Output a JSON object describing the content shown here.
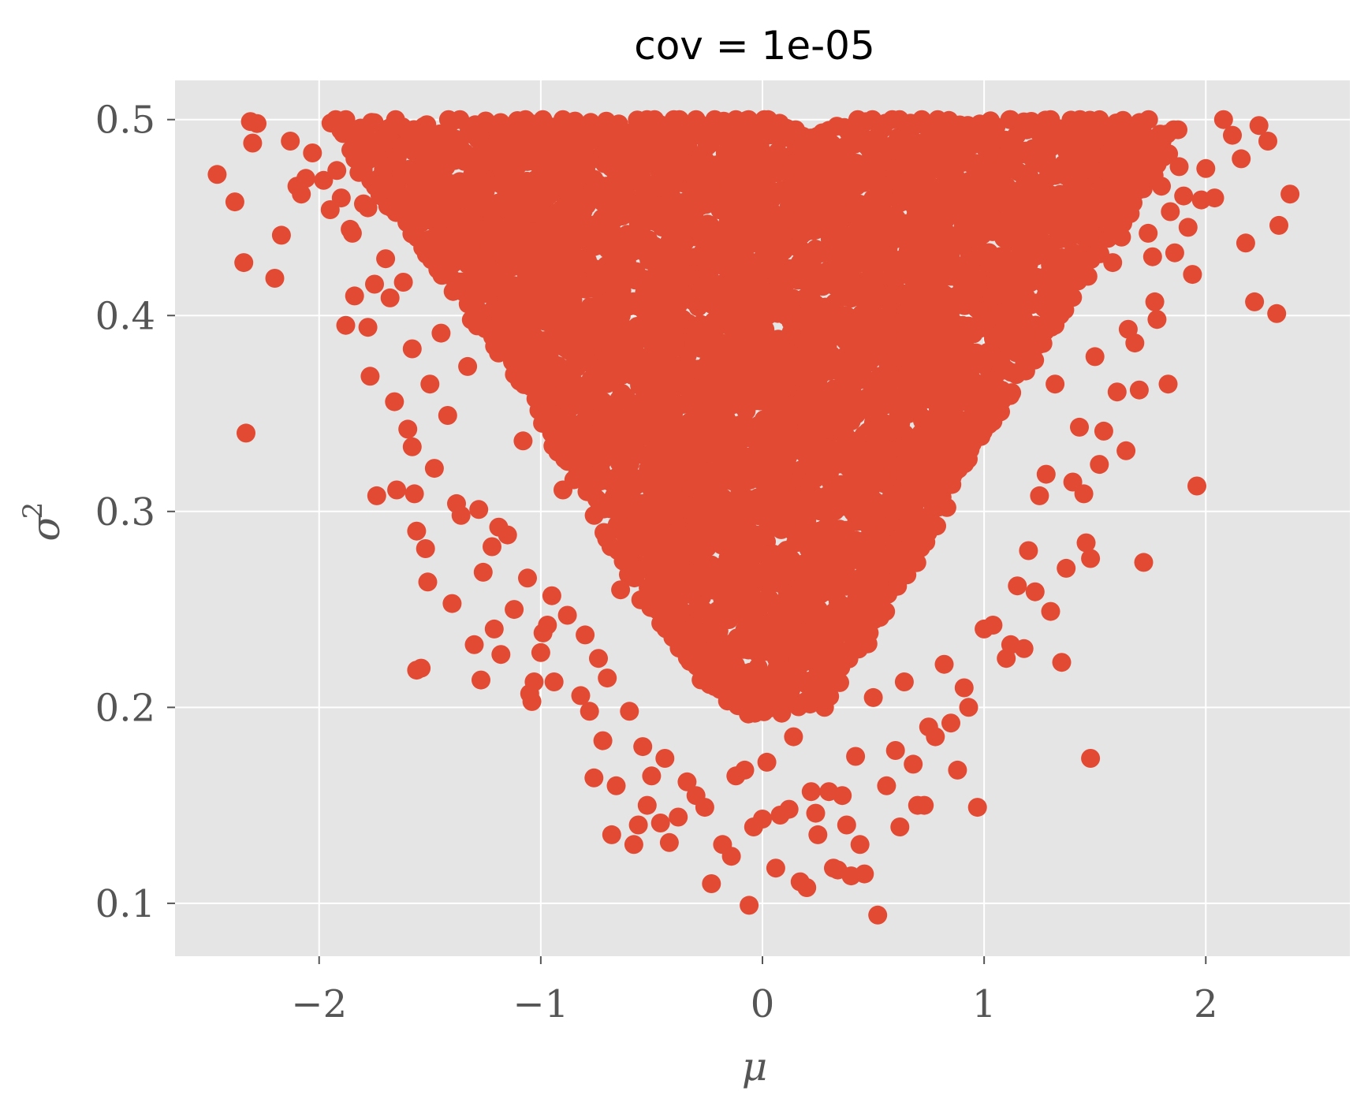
{
  "chart_data": {
    "type": "scatter",
    "title": "cov = 1e-05",
    "xlabel": "μ",
    "ylabel": "σ",
    "ylabel_superscript": "2",
    "xlim": [
      -2.65,
      2.65
    ],
    "ylim": [
      0.073,
      0.52
    ],
    "xticks": [
      -2,
      -1,
      0,
      1,
      2
    ],
    "xtick_labels": [
      "−2",
      "−1",
      "0",
      "1",
      "2"
    ],
    "yticks": [
      0.1,
      0.2,
      0.3,
      0.4,
      0.5
    ],
    "ytick_labels": [
      "0.1",
      "0.2",
      "0.3",
      "0.4",
      "0.5"
    ],
    "grid": true,
    "legend": "none",
    "colors": {
      "marker": "#E24A33",
      "plot_bg": "#E5E5E5",
      "grid": "#FFFFFF",
      "tick_label": "#555555"
    },
    "series": [
      {
        "points": [
          [
            -2.46,
            0.472
          ],
          [
            -2.38,
            0.458
          ],
          [
            -2.34,
            0.427
          ],
          [
            -2.33,
            0.34
          ],
          [
            -2.31,
            0.499
          ],
          [
            -2.3,
            0.488
          ],
          [
            -2.28,
            0.498
          ],
          [
            -2.2,
            0.419
          ],
          [
            -2.17,
            0.441
          ],
          [
            -2.13,
            0.489
          ],
          [
            -2.1,
            0.466
          ],
          [
            -2.08,
            0.462
          ],
          [
            -2.06,
            0.47
          ],
          [
            -2.03,
            0.483
          ],
          [
            -1.98,
            0.469
          ],
          [
            -1.95,
            0.454
          ],
          [
            -1.92,
            0.474
          ],
          [
            -1.9,
            0.46
          ],
          [
            -1.88,
            0.395
          ],
          [
            -1.86,
            0.444
          ],
          [
            -1.85,
            0.442
          ],
          [
            -1.84,
            0.41
          ],
          [
            -1.82,
            0.473
          ],
          [
            -1.8,
            0.457
          ],
          [
            -1.78,
            0.455
          ],
          [
            -1.78,
            0.394
          ],
          [
            -1.77,
            0.369
          ],
          [
            -1.75,
            0.416
          ],
          [
            -1.74,
            0.308
          ],
          [
            -1.7,
            0.429
          ],
          [
            -1.68,
            0.409
          ],
          [
            -1.66,
            0.356
          ],
          [
            -1.65,
            0.311
          ],
          [
            -1.62,
            0.417
          ],
          [
            -1.6,
            0.342
          ],
          [
            -1.58,
            0.383
          ],
          [
            -1.58,
            0.333
          ],
          [
            -1.57,
            0.309
          ],
          [
            -1.56,
            0.29
          ],
          [
            -1.56,
            0.219
          ],
          [
            -1.54,
            0.22
          ],
          [
            -1.52,
            0.281
          ],
          [
            -1.51,
            0.264
          ],
          [
            -1.5,
            0.365
          ],
          [
            -1.48,
            0.322
          ],
          [
            -1.45,
            0.391
          ],
          [
            -1.42,
            0.349
          ],
          [
            -1.4,
            0.253
          ],
          [
            -1.38,
            0.304
          ],
          [
            -1.36,
            0.298
          ],
          [
            -1.33,
            0.374
          ],
          [
            -1.3,
            0.232
          ],
          [
            -1.28,
            0.301
          ],
          [
            -1.27,
            0.214
          ],
          [
            -1.26,
            0.269
          ],
          [
            -1.22,
            0.282
          ],
          [
            -1.21,
            0.24
          ],
          [
            -1.19,
            0.292
          ],
          [
            -1.18,
            0.227
          ],
          [
            -1.15,
            0.288
          ],
          [
            -1.12,
            0.25
          ],
          [
            -1.08,
            0.336
          ],
          [
            -1.06,
            0.266
          ],
          [
            -1.05,
            0.207
          ],
          [
            -1.04,
            0.203
          ],
          [
            -1.03,
            0.213
          ],
          [
            -1.0,
            0.228
          ],
          [
            -0.99,
            0.238
          ],
          [
            -0.97,
            0.242
          ],
          [
            -0.95,
            0.257
          ],
          [
            -0.94,
            0.213
          ],
          [
            -0.9,
            0.311
          ],
          [
            -0.88,
            0.247
          ],
          [
            -0.82,
            0.206
          ],
          [
            -0.8,
            0.237
          ],
          [
            -0.78,
            0.198
          ],
          [
            -0.76,
            0.164
          ],
          [
            -0.74,
            0.225
          ],
          [
            -0.72,
            0.183
          ],
          [
            -0.7,
            0.215
          ],
          [
            -0.68,
            0.135
          ],
          [
            -0.66,
            0.16
          ],
          [
            -0.64,
            0.26
          ],
          [
            -0.6,
            0.198
          ],
          [
            -0.58,
            0.13
          ],
          [
            -0.56,
            0.14
          ],
          [
            -0.54,
            0.18
          ],
          [
            -0.52,
            0.15
          ],
          [
            -0.5,
            0.165
          ],
          [
            -0.46,
            0.141
          ],
          [
            -0.44,
            0.174
          ],
          [
            -0.42,
            0.131
          ],
          [
            -0.38,
            0.144
          ],
          [
            -0.34,
            0.162
          ],
          [
            -0.3,
            0.155
          ],
          [
            -0.26,
            0.149
          ],
          [
            -0.23,
            0.11
          ],
          [
            -0.18,
            0.13
          ],
          [
            -0.14,
            0.124
          ],
          [
            -0.12,
            0.165
          ],
          [
            -0.08,
            0.168
          ],
          [
            -0.06,
            0.099
          ],
          [
            -0.04,
            0.139
          ],
          [
            0.0,
            0.143
          ],
          [
            0.02,
            0.172
          ],
          [
            0.06,
            0.118
          ],
          [
            0.08,
            0.145
          ],
          [
            0.12,
            0.148
          ],
          [
            0.14,
            0.185
          ],
          [
            0.17,
            0.111
          ],
          [
            0.2,
            0.108
          ],
          [
            0.22,
            0.157
          ],
          [
            0.24,
            0.146
          ],
          [
            0.25,
            0.135
          ],
          [
            0.28,
            0.2
          ],
          [
            0.3,
            0.157
          ],
          [
            0.32,
            0.118
          ],
          [
            0.34,
            0.117
          ],
          [
            0.36,
            0.155
          ],
          [
            0.38,
            0.14
          ],
          [
            0.4,
            0.114
          ],
          [
            0.42,
            0.175
          ],
          [
            0.44,
            0.13
          ],
          [
            0.46,
            0.115
          ],
          [
            0.5,
            0.205
          ],
          [
            0.52,
            0.094
          ],
          [
            0.56,
            0.16
          ],
          [
            0.6,
            0.178
          ],
          [
            0.62,
            0.139
          ],
          [
            0.64,
            0.213
          ],
          [
            0.68,
            0.171
          ],
          [
            0.7,
            0.15
          ],
          [
            0.73,
            0.15
          ],
          [
            0.75,
            0.19
          ],
          [
            0.78,
            0.185
          ],
          [
            0.82,
            0.222
          ],
          [
            0.85,
            0.192
          ],
          [
            0.88,
            0.168
          ],
          [
            0.91,
            0.21
          ],
          [
            0.93,
            0.2
          ],
          [
            0.97,
            0.149
          ],
          [
            1.0,
            0.24
          ],
          [
            1.04,
            0.242
          ],
          [
            1.1,
            0.225
          ],
          [
            1.12,
            0.232
          ],
          [
            1.15,
            0.262
          ],
          [
            1.18,
            0.23
          ],
          [
            1.2,
            0.28
          ],
          [
            1.23,
            0.259
          ],
          [
            1.25,
            0.308
          ],
          [
            1.28,
            0.319
          ],
          [
            1.3,
            0.249
          ],
          [
            1.32,
            0.365
          ],
          [
            1.35,
            0.223
          ],
          [
            1.37,
            0.271
          ],
          [
            1.4,
            0.315
          ],
          [
            1.43,
            0.343
          ],
          [
            1.45,
            0.309
          ],
          [
            1.46,
            0.284
          ],
          [
            1.48,
            0.276
          ],
          [
            1.48,
            0.174
          ],
          [
            1.5,
            0.379
          ],
          [
            1.52,
            0.324
          ],
          [
            1.54,
            0.341
          ],
          [
            1.58,
            0.427
          ],
          [
            1.6,
            0.361
          ],
          [
            1.62,
            0.44
          ],
          [
            1.64,
            0.331
          ],
          [
            1.65,
            0.393
          ],
          [
            1.68,
            0.386
          ],
          [
            1.7,
            0.362
          ],
          [
            1.72,
            0.274
          ],
          [
            1.74,
            0.442
          ],
          [
            1.76,
            0.43
          ],
          [
            1.77,
            0.407
          ],
          [
            1.78,
            0.398
          ],
          [
            1.8,
            0.466
          ],
          [
            1.83,
            0.365
          ],
          [
            1.84,
            0.453
          ],
          [
            1.86,
            0.432
          ],
          [
            1.88,
            0.476
          ],
          [
            1.9,
            0.461
          ],
          [
            1.92,
            0.445
          ],
          [
            1.94,
            0.421
          ],
          [
            1.96,
            0.313
          ],
          [
            1.98,
            0.459
          ],
          [
            2.0,
            0.475
          ],
          [
            2.04,
            0.46
          ],
          [
            2.08,
            0.5
          ],
          [
            2.12,
            0.492
          ],
          [
            2.16,
            0.48
          ],
          [
            2.18,
            0.437
          ],
          [
            2.22,
            0.407
          ],
          [
            2.24,
            0.497
          ],
          [
            2.28,
            0.489
          ],
          [
            2.32,
            0.401
          ],
          [
            2.33,
            0.446
          ],
          [
            2.38,
            0.462
          ]
        ],
        "dense_region": {
          "description": "thousands of overlapping points filling the region between these upper and lower envelopes",
          "envelope_mu": [
            -1.95,
            -1.7,
            -1.5,
            -1.3,
            -1.1,
            -0.9,
            -0.7,
            -0.5,
            -0.3,
            -0.1,
            0.1,
            0.3,
            0.5,
            0.7,
            0.9,
            1.1,
            1.3,
            1.5,
            1.7,
            1.9
          ],
          "envelope_low": [
            0.5,
            0.46,
            0.43,
            0.4,
            0.37,
            0.33,
            0.29,
            0.25,
            0.22,
            0.2,
            0.2,
            0.21,
            0.24,
            0.28,
            0.32,
            0.36,
            0.39,
            0.43,
            0.46,
            0.5
          ],
          "envelope_high": [
            0.5,
            0.5,
            0.5,
            0.5,
            0.5,
            0.5,
            0.5,
            0.5,
            0.5,
            0.5,
            0.5,
            0.5,
            0.5,
            0.5,
            0.5,
            0.5,
            0.5,
            0.5,
            0.5,
            0.5
          ]
        }
      }
    ]
  }
}
